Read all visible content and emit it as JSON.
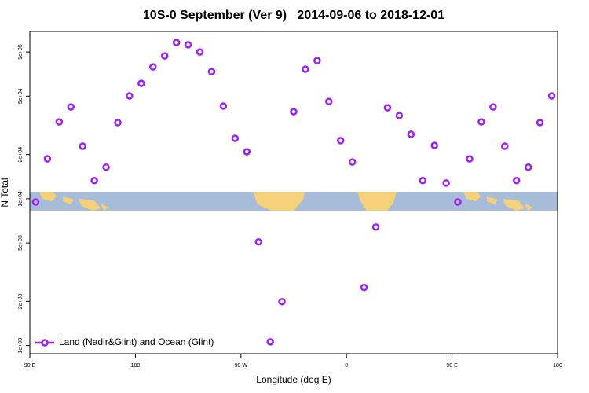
{
  "chart_data": {
    "type": "scatter",
    "title": "10S-0 September (Ver 9)   2014-09-06 to 2018-12-01",
    "x_label": "Longitude (deg E)",
    "y_label": "N Total",
    "log_y": true,
    "legend_position": "bottom-left",
    "xlim": [
      90,
      540
    ],
    "xticks": [
      {
        "value": 90,
        "label": "90 E"
      },
      180,
      {
        "value": 270,
        "label": "90 W"
      },
      {
        "value": 360,
        "label": "0"
      },
      {
        "value": 450,
        "label": "90 E"
      },
      {
        "value": 540,
        "label": "180"
      }
    ],
    "ylim": [
      880,
      138000
    ],
    "yticks": [
      {
        "value": 1000,
        "label": "1e+03"
      },
      {
        "value": 2000,
        "label": "2e+03"
      },
      {
        "value": 5000,
        "label": "5e+03"
      },
      {
        "value": 10000,
        "label": "1e+04"
      },
      {
        "value": 20000,
        "label": "2e+04"
      },
      {
        "value": 50000,
        "label": "5e+04"
      },
      {
        "value": 100000,
        "label": "1e+05"
      }
    ],
    "series": [
      {
        "name": "Land (Nadir&Glint) and Ocean (Glint)",
        "color": "#a020f0",
        "x": [
          95,
          105,
          115,
          125,
          135,
          145,
          155,
          165,
          175,
          185,
          195,
          205,
          215,
          225,
          235,
          245,
          255,
          265,
          275,
          285,
          295,
          305,
          315,
          325,
          335,
          345,
          355,
          365,
          375,
          385,
          395,
          405,
          415,
          425,
          435,
          445,
          455,
          465,
          475,
          485,
          495,
          505,
          515,
          525,
          535
        ],
        "values": [
          9500,
          18700,
          33400,
          42200,
          22800,
          13300,
          16400,
          33000,
          50200,
          61100,
          79100,
          94000,
          116000,
          112000,
          100000,
          73500,
          42800,
          25800,
          20900,
          5080,
          1060,
          1990,
          39200,
          76300,
          87300,
          46000,
          24900,
          17800,
          2490,
          6420,
          41700,
          36900,
          27500,
          13300,
          23100,
          12800,
          9500,
          18700,
          33400,
          42200,
          22800,
          13300,
          16400,
          33000,
          50200
        ]
      }
    ]
  }
}
